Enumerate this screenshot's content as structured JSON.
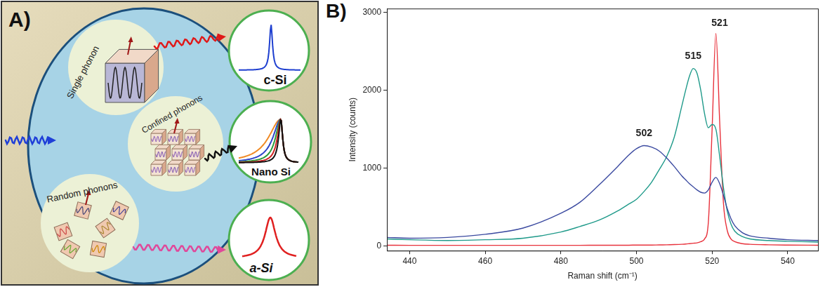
{
  "panel_a": {
    "label": "A)",
    "phonons": [
      {
        "label": "Single phonon"
      },
      {
        "label": "Confined phonons"
      },
      {
        "label": "Random phonons"
      }
    ],
    "spectra": [
      {
        "label": "c-Si"
      },
      {
        "label": "Nano Si"
      },
      {
        "label": "a-Si"
      }
    ]
  },
  "chart_data": {
    "panel_label": "B)",
    "type": "line",
    "x_label": "Raman shift (cm⁻¹)",
    "y_label": "Intensity (counts)",
    "x": [
      434,
      440,
      450,
      460,
      470,
      480,
      485,
      490,
      495,
      498,
      500,
      502,
      504,
      506,
      508,
      510,
      512,
      513,
      514,
      515,
      516,
      517,
      518,
      519,
      520,
      521,
      522,
      523,
      524,
      525,
      526,
      528,
      530,
      535,
      540,
      548
    ],
    "series": [
      {
        "color": "#3b4aa0",
        "values": [
          110,
          100,
          110,
          150,
          230,
          420,
          560,
          780,
          1020,
          1170,
          1250,
          1290,
          1270,
          1220,
          1130,
          1020,
          900,
          850,
          800,
          760,
          720,
          690,
          680,
          720,
          820,
          880,
          800,
          650,
          480,
          350,
          260,
          170,
          130,
          100,
          80,
          70
        ]
      },
      {
        "color": "#1f9a8a",
        "values": [
          90,
          80,
          70,
          80,
          100,
          180,
          250,
          330,
          450,
          540,
          600,
          700,
          820,
          980,
          1150,
          1400,
          1800,
          2000,
          2180,
          2280,
          2220,
          2000,
          1700,
          1520,
          1560,
          1500,
          1150,
          750,
          450,
          280,
          190,
          120,
          90,
          70,
          60,
          50
        ]
      },
      {
        "color": "#e8323c",
        "values": [
          10,
          8,
          8,
          8,
          8,
          8,
          8,
          10,
          10,
          10,
          12,
          12,
          12,
          14,
          15,
          18,
          22,
          25,
          30,
          35,
          40,
          55,
          90,
          300,
          1500,
          2730,
          1600,
          550,
          200,
          90,
          55,
          30,
          22,
          15,
          12,
          10
        ]
      }
    ],
    "xlim": [
      434,
      548
    ],
    "xticks": [
      440,
      460,
      480,
      500,
      520,
      540
    ],
    "ylim": [
      -60,
      3050
    ],
    "yticks": [
      0,
      1000,
      2000,
      3000
    ],
    "grid": false,
    "annotations": [
      {
        "text": "502",
        "x": 502,
        "y": 1380
      },
      {
        "text": "515",
        "x": 515,
        "y": 2370
      },
      {
        "text": "521",
        "x": 522,
        "y": 2800
      }
    ]
  }
}
